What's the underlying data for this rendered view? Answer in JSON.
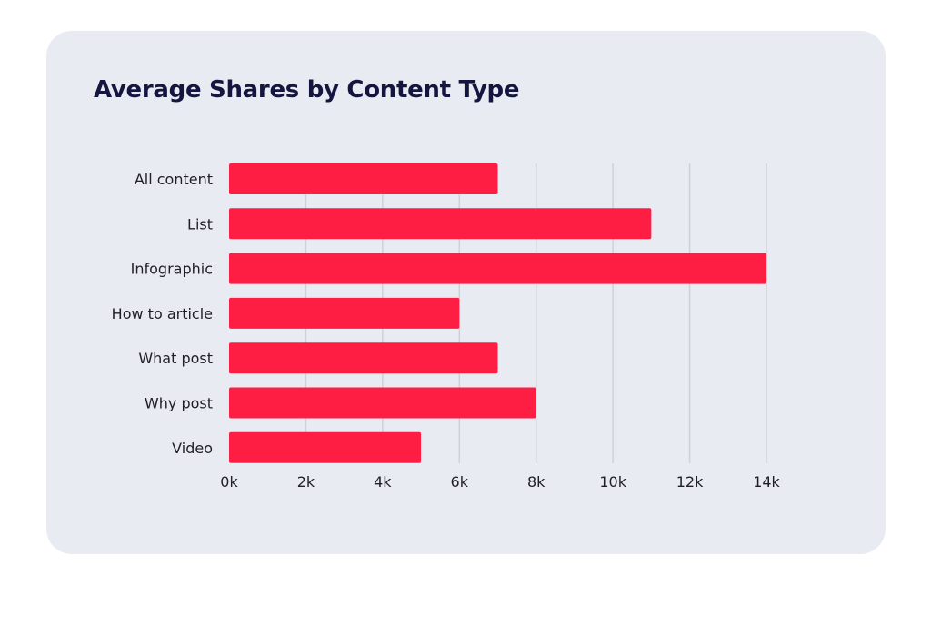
{
  "chart_data": {
    "type": "bar",
    "orientation": "horizontal",
    "title": "Average Shares by Content Type",
    "categories": [
      "All content",
      "List",
      "Infographic",
      "How to article",
      "What post",
      "Why post",
      "Video"
    ],
    "values": [
      7000,
      11000,
      14000,
      6000,
      7000,
      8000,
      5000
    ],
    "xlim": [
      0,
      14000
    ],
    "x_ticks": [
      0,
      2000,
      4000,
      6000,
      8000,
      10000,
      12000,
      14000
    ],
    "x_tick_labels": [
      "0k",
      "2k",
      "4k",
      "6k",
      "8k",
      "10k",
      "12k",
      "14k"
    ],
    "xlabel": "",
    "ylabel": "",
    "grid": "vertical",
    "legend": "none",
    "colors": {
      "bar": "#ff1e43",
      "card_background": "#e9ebf3",
      "title": "#14163f",
      "text": "#1f1f24",
      "grid": "#cfd1d8"
    }
  }
}
